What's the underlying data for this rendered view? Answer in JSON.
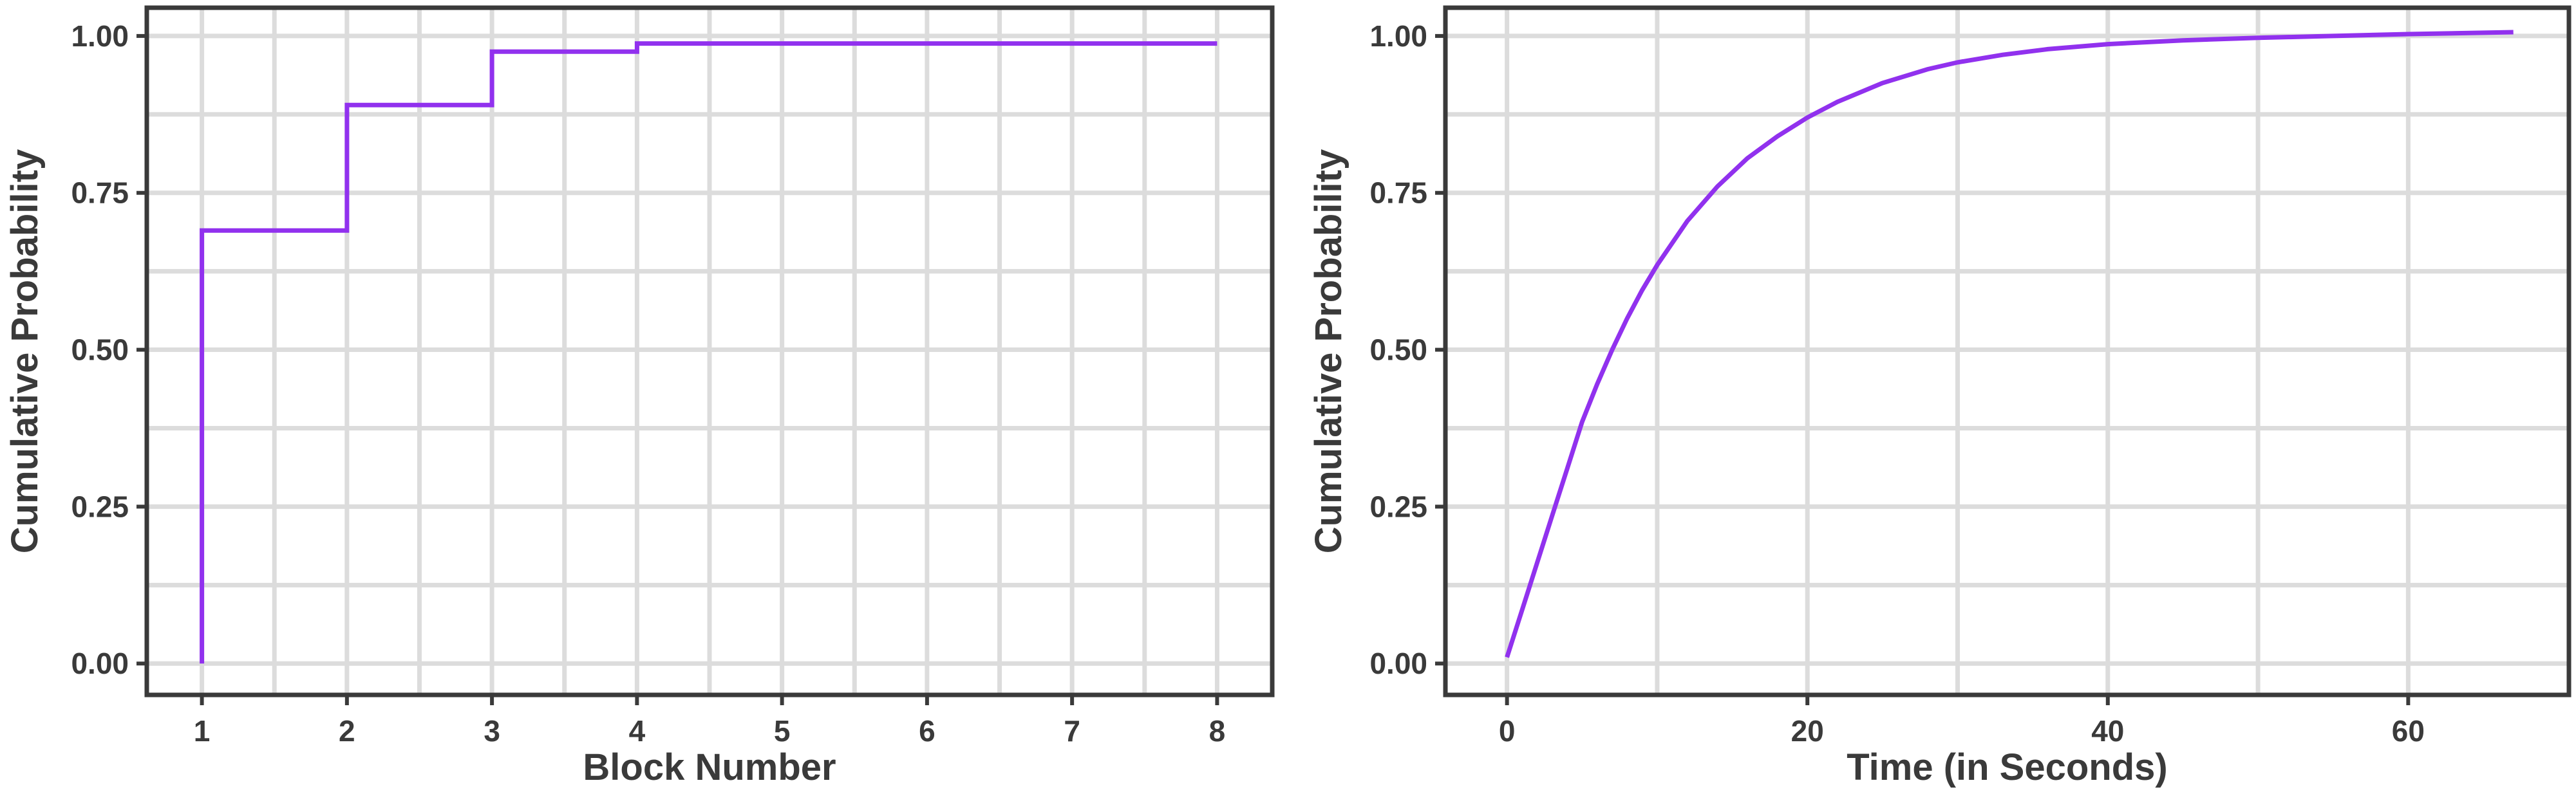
{
  "colors": {
    "line": "#9131ee",
    "grid": "#dcdcdc",
    "frame": "#3a3a3a",
    "text": "#3a3a3a"
  },
  "chart_data": [
    {
      "type": "line",
      "step": true,
      "xlabel": "Block Number",
      "ylabel": "Cumulative Probability",
      "xlim": [
        0.62,
        8.38
      ],
      "ylim": [
        -0.05,
        1.045
      ],
      "xticks": [
        1,
        2,
        3,
        4,
        5,
        6,
        7,
        8
      ],
      "xtick_labels": [
        "1",
        "2",
        "3",
        "4",
        "5",
        "6",
        "7",
        "8"
      ],
      "yticks": [
        0,
        0.25,
        0.5,
        0.75,
        1
      ],
      "ytick_labels": [
        "0.00",
        "0.25",
        "0.50",
        "0.75",
        "1.00"
      ],
      "grid": true,
      "series": [
        {
          "x": [
            1,
            1,
            2,
            2,
            3,
            3,
            4,
            4,
            8
          ],
          "y": [
            0.0,
            0.69,
            0.69,
            0.89,
            0.89,
            0.975,
            0.975,
            0.988,
            0.988
          ]
        }
      ]
    },
    {
      "type": "line",
      "xlabel": "Time (in Seconds)",
      "ylabel": "Cumulative Probability",
      "xlim": [
        -4.1,
        70.7
      ],
      "ylim": [
        -0.05,
        1.045
      ],
      "xticks": [
        0,
        20,
        40,
        60
      ],
      "xtick_labels": [
        "0",
        "20",
        "40",
        "60"
      ],
      "yticks": [
        0,
        0.25,
        0.5,
        0.75,
        1
      ],
      "ytick_labels": [
        "0.00",
        "0.25",
        "0.50",
        "0.75",
        "1.00"
      ],
      "grid": true,
      "series": [
        {
          "x": [
            0,
            1,
            2,
            3,
            4,
            5,
            6,
            7,
            8,
            9,
            10,
            12,
            14,
            16,
            18,
            20,
            22,
            25,
            28,
            30,
            33,
            36,
            40,
            45,
            50,
            55,
            60,
            67
          ],
          "y": [
            0.01,
            0.085,
            0.16,
            0.235,
            0.31,
            0.385,
            0.445,
            0.5,
            0.55,
            0.595,
            0.635,
            0.705,
            0.76,
            0.805,
            0.84,
            0.87,
            0.895,
            0.925,
            0.947,
            0.958,
            0.97,
            0.979,
            0.987,
            0.993,
            0.997,
            1.0,
            1.003,
            1.006
          ]
        }
      ]
    }
  ]
}
